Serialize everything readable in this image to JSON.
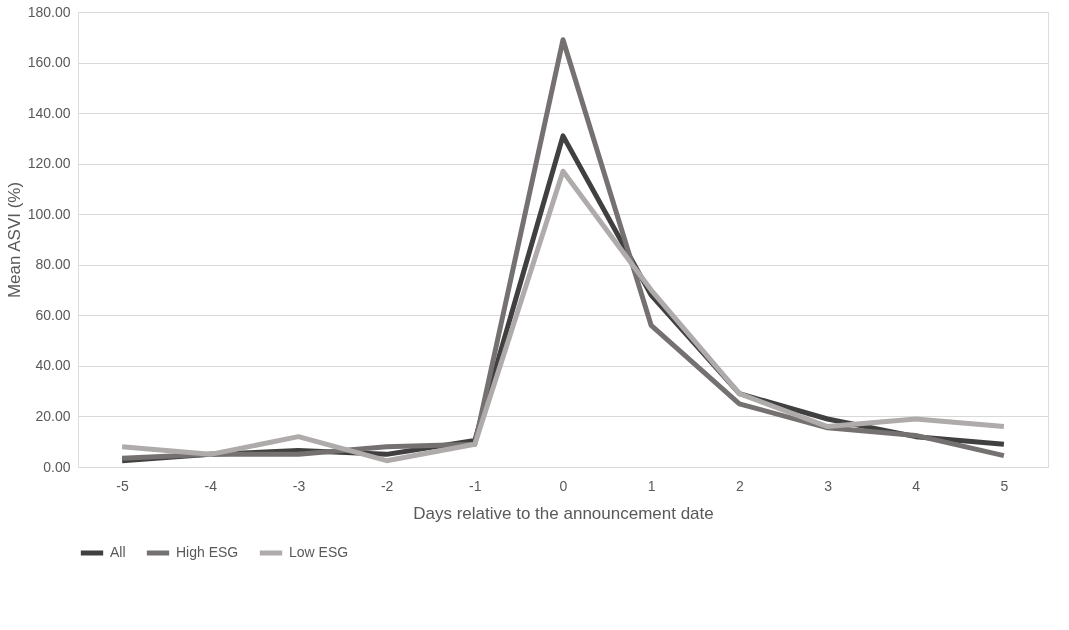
{
  "chart_data": {
    "type": "line",
    "xlabel": "Days relative to the announcement date",
    "ylabel": "Mean ASVI (%)",
    "categories": [
      "-5",
      "-4",
      "-3",
      "-2",
      "-1",
      "0",
      "1",
      "2",
      "3",
      "4",
      "5"
    ],
    "series": [
      {
        "name": "All",
        "color": "#404040",
        "values": [
          2.5,
          5,
          6.5,
          5,
          10.5,
          131,
          68,
          29,
          19,
          12,
          9
        ]
      },
      {
        "name": "High ESG",
        "color": "#767171",
        "values": [
          3.5,
          5,
          5,
          8,
          9,
          169,
          56,
          25,
          15.5,
          12.5,
          4.5
        ]
      },
      {
        "name": "Low ESG",
        "color": "#afabab",
        "values": [
          8,
          5,
          12,
          2.5,
          9,
          117,
          70,
          29,
          16,
          19,
          16
        ]
      }
    ],
    "ylim": [
      0,
      180
    ],
    "yticks": [
      {
        "value": 0,
        "label": "0.00"
      },
      {
        "value": 20,
        "label": "20.00"
      },
      {
        "value": 40,
        "label": "40.00"
      },
      {
        "value": 60,
        "label": "60.00"
      },
      {
        "value": 80,
        "label": "80.00"
      },
      {
        "value": 100,
        "label": "100.00"
      },
      {
        "value": 120,
        "label": "120.00"
      },
      {
        "value": 140,
        "label": "140.00"
      },
      {
        "value": 160,
        "label": "160.00"
      },
      {
        "value": 180,
        "label": "180.00"
      }
    ],
    "grid": "y",
    "legend": "bottom",
    "line_style": "solid",
    "marker": "none"
  }
}
